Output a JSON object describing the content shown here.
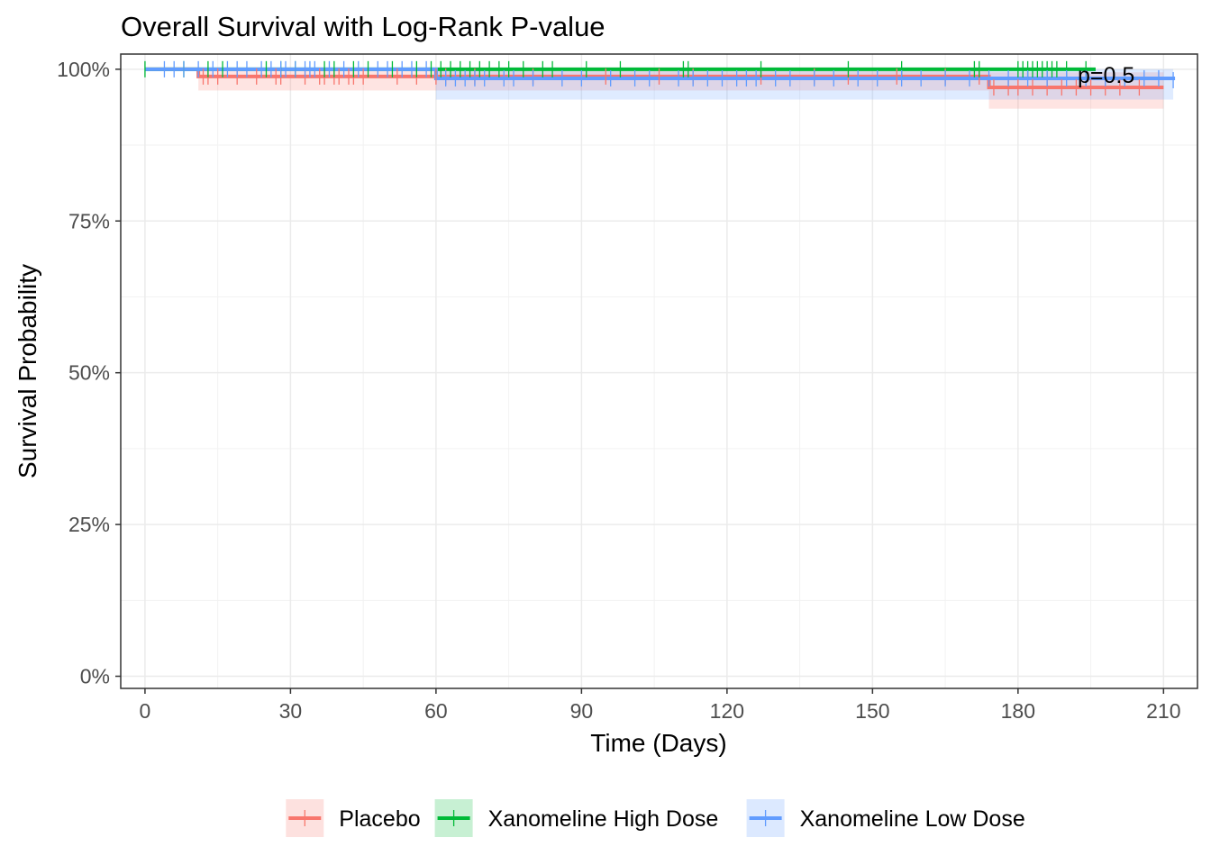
{
  "chart_data": {
    "type": "line",
    "subtype": "kaplan-meier",
    "title": "Overall Survival with Log-Rank P-value",
    "xlabel": "Time (Days)",
    "ylabel": "Survival Probability",
    "xlim": [
      -5,
      217
    ],
    "ylim": [
      -0.02,
      1.025
    ],
    "x_ticks": [
      0,
      30,
      60,
      90,
      120,
      150,
      180,
      210
    ],
    "x_tick_labels": [
      "0",
      "30",
      "60",
      "90",
      "120",
      "150",
      "180",
      "210"
    ],
    "y_ticks": [
      0,
      0.25,
      0.5,
      0.75,
      1.0
    ],
    "y_tick_labels": [
      "0%",
      "25%",
      "50%",
      "75%",
      "100%"
    ],
    "grid": true,
    "legend_position": "bottom",
    "annotation": {
      "text": "p=0.5",
      "x": 199,
      "y": 0.99
    },
    "series": [
      {
        "name": "Placebo",
        "color": "#F8766D",
        "steps": [
          [
            0,
            1.0
          ],
          [
            11,
            0.988
          ],
          [
            174,
            0.97
          ],
          [
            210,
            0.97
          ]
        ],
        "ci": [
          [
            11,
            0.965,
            1.0
          ],
          [
            174,
            0.935,
            0.995
          ],
          [
            210,
            0.935,
            0.995
          ]
        ],
        "censor_times": [
          12,
          13,
          15,
          19,
          23,
          27,
          28,
          33,
          36,
          37,
          39,
          40,
          42,
          43,
          45,
          52,
          56,
          60,
          62,
          68,
          80,
          95,
          106,
          113,
          127,
          138,
          145,
          155,
          165,
          172,
          175,
          178,
          180,
          183,
          186,
          189,
          192,
          195,
          198,
          201,
          205
        ]
      },
      {
        "name": "Xanomeline High Dose",
        "color": "#00BA38",
        "steps": [
          [
            0,
            1.0
          ],
          [
            196,
            1.0
          ]
        ],
        "ci": [],
        "censor_times": [
          0,
          8,
          13,
          16,
          25,
          28,
          31,
          37,
          39,
          43,
          46,
          51,
          56,
          59,
          61,
          63,
          65,
          67,
          69,
          71,
          73,
          75,
          78,
          82,
          84,
          91,
          98,
          111,
          112,
          127,
          145,
          156,
          171,
          172,
          180,
          181,
          182,
          183,
          184,
          185,
          186,
          187,
          188,
          190,
          194
        ]
      },
      {
        "name": "Xanomeline Low Dose",
        "color": "#619CFF",
        "steps": [
          [
            0,
            1.0
          ],
          [
            60,
            0.985
          ],
          [
            212,
            0.982
          ]
        ],
        "ci": [
          [
            60,
            0.95,
            1.0
          ],
          [
            212,
            0.95,
            1.0
          ]
        ],
        "censor_times": [
          4,
          6,
          8,
          11,
          14,
          17,
          19,
          21,
          24,
          26,
          28,
          29,
          31,
          33,
          34,
          35,
          38,
          41,
          44,
          48,
          50,
          53,
          55,
          58,
          62,
          64,
          66,
          68,
          70,
          74,
          76,
          80,
          86,
          90,
          96,
          101,
          104,
          110,
          113,
          116,
          119,
          122,
          124,
          126,
          130,
          133,
          138,
          142,
          147,
          151,
          156,
          160,
          165,
          170,
          174,
          178,
          182,
          186,
          190,
          194,
          198,
          202,
          206,
          209,
          212
        ]
      }
    ]
  }
}
